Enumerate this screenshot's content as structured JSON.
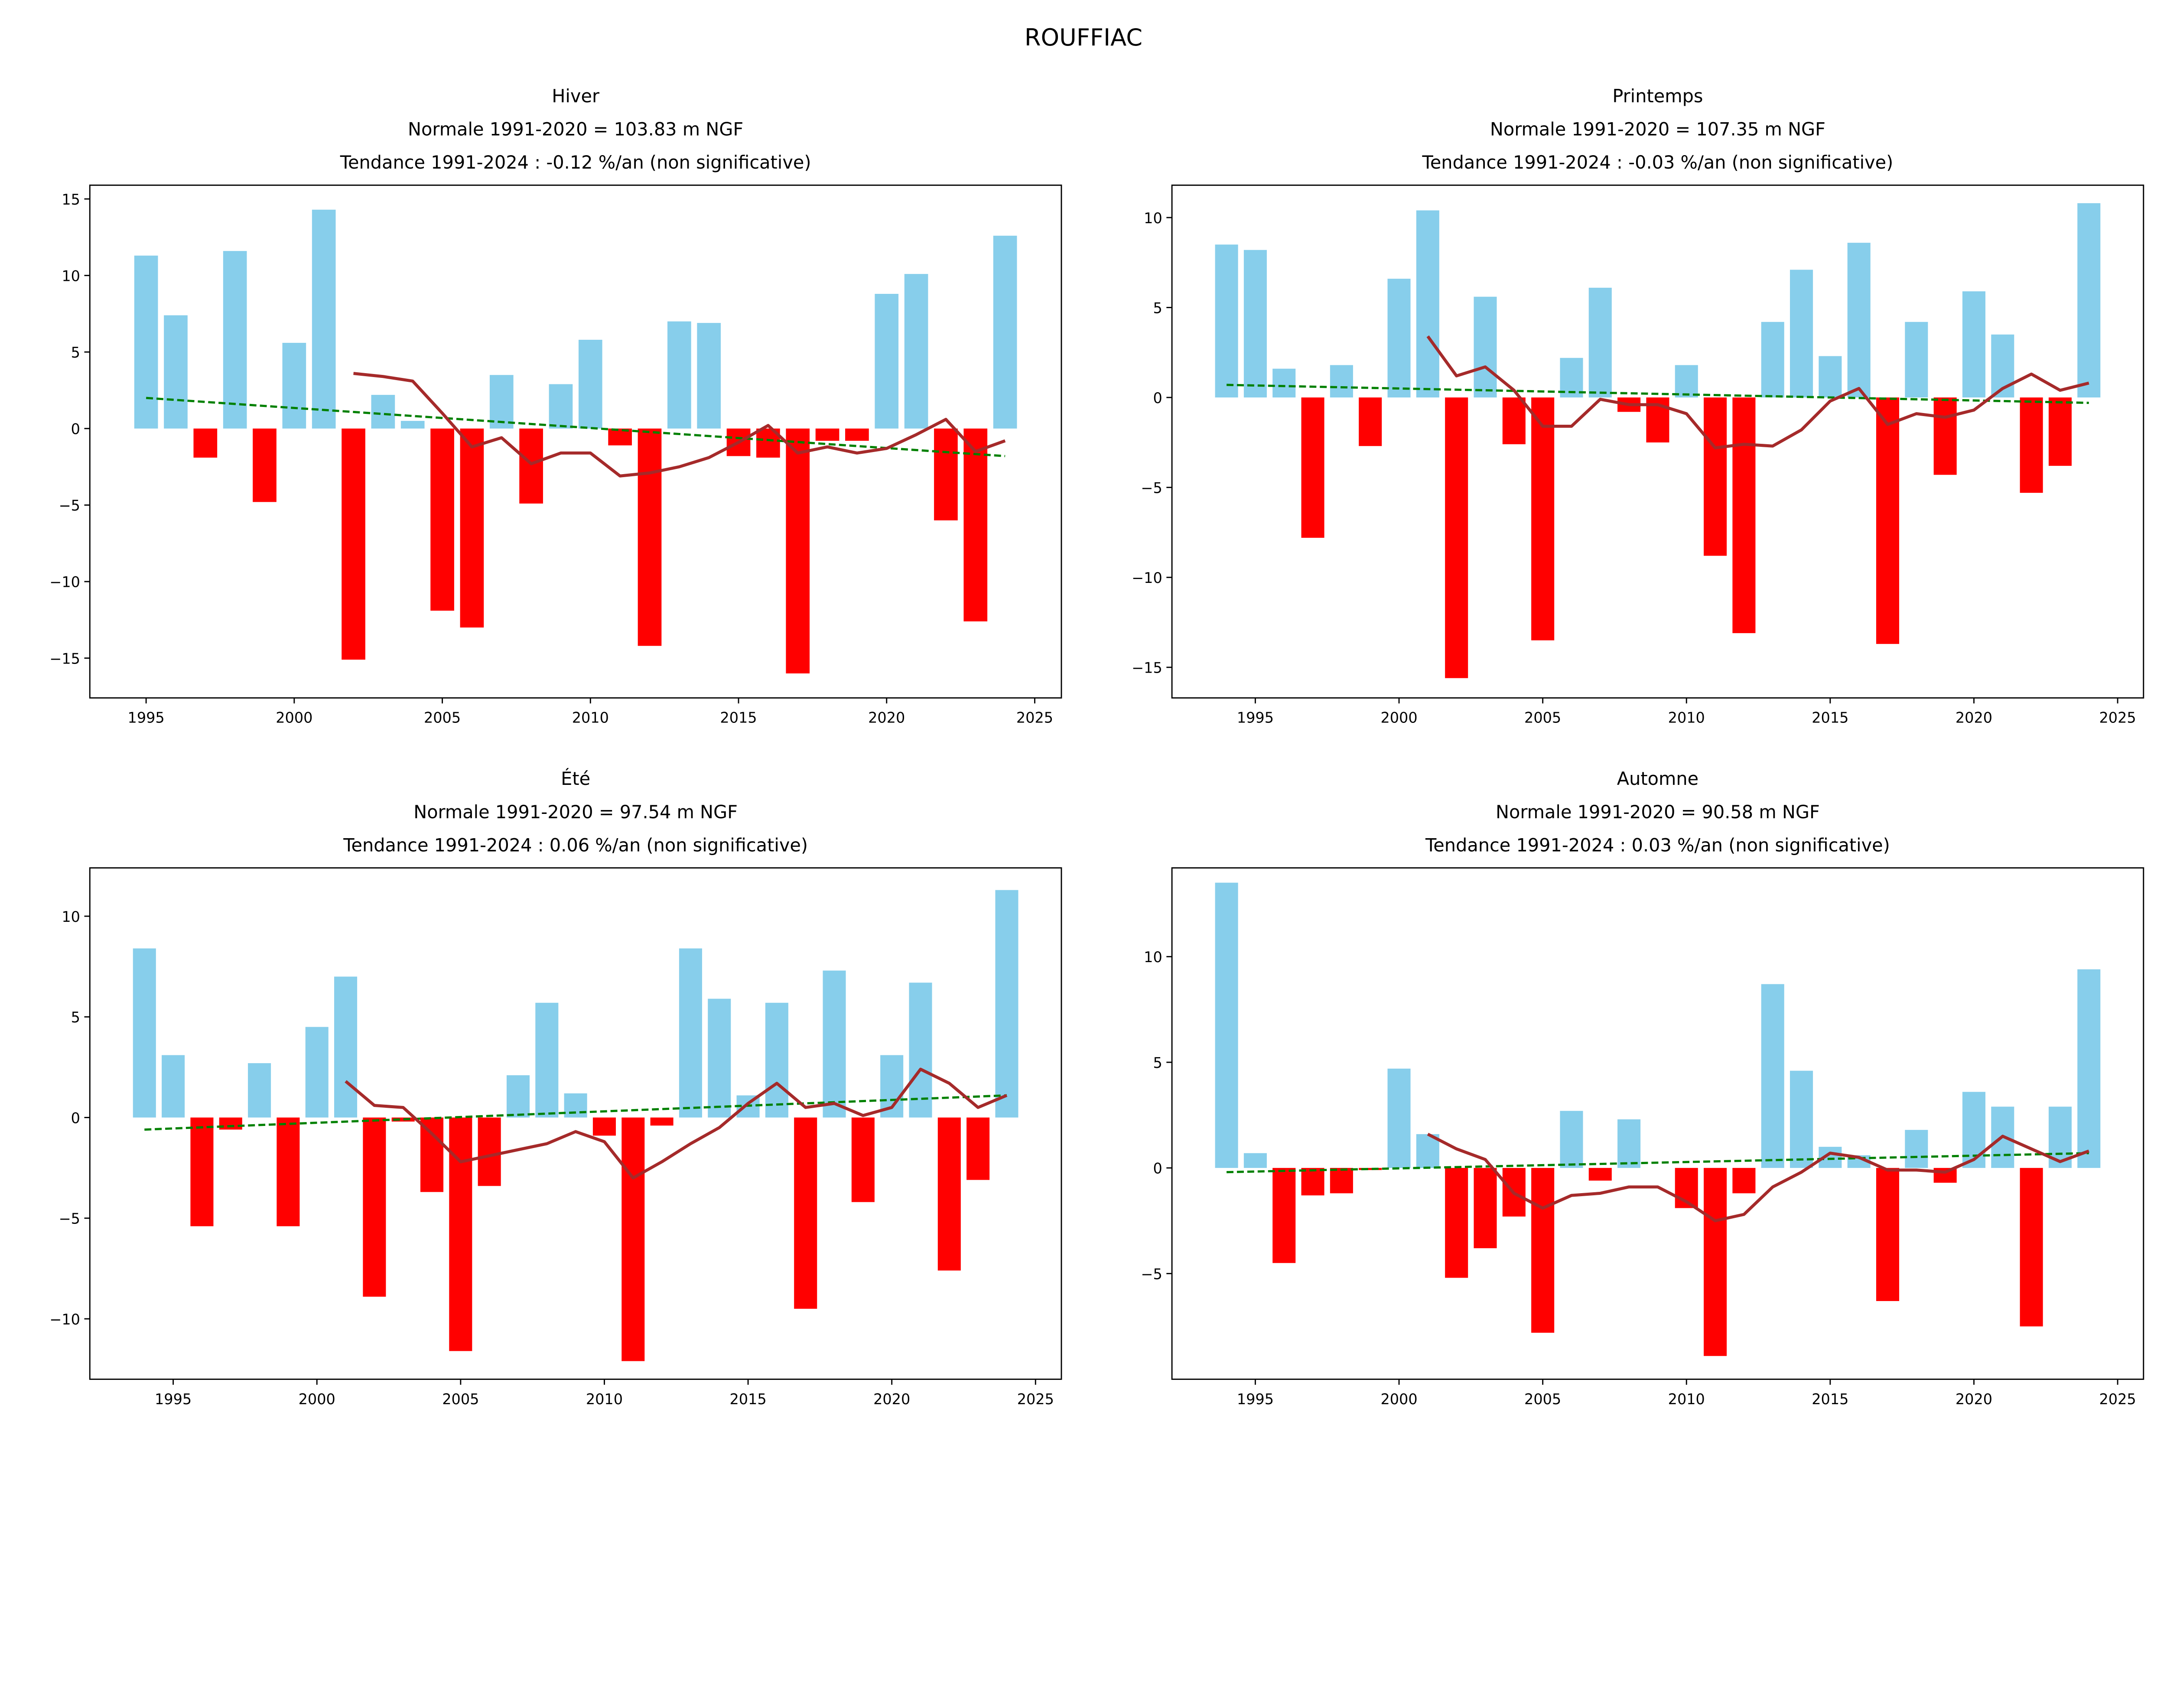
{
  "suptitle": "ROUFFIAC",
  "colors": {
    "positive": "#87ceeb",
    "negative": "#ff0000",
    "rolling": "#a52a2a",
    "trend": "#008000"
  },
  "chart_data": [
    {
      "type": "bar",
      "title_lines": [
        "Hiver",
        "Normale 1991-2020 = 103.83 m NGF",
        "Tendance 1991-2024 : -0.12 %/an (non significative)"
      ],
      "xlim": [
        1993.1,
        2025.9
      ],
      "ylim": [
        -17.6,
        15.9
      ],
      "xticks": [
        1995,
        2000,
        2005,
        2010,
        2015,
        2020,
        2025
      ],
      "yticks": [
        -15,
        -10,
        -5,
        0,
        5,
        10,
        15
      ],
      "years": [
        1995,
        1996,
        1997,
        1998,
        1999,
        2000,
        2001,
        2002,
        2003,
        2004,
        2005,
        2006,
        2007,
        2008,
        2009,
        2010,
        2011,
        2012,
        2013,
        2014,
        2015,
        2016,
        2017,
        2018,
        2019,
        2020,
        2021,
        2022,
        2023,
        2024
      ],
      "values": [
        11.3,
        7.4,
        -1.9,
        11.6,
        -4.8,
        5.6,
        14.3,
        -15.1,
        2.2,
        0.5,
        -11.9,
        -13.0,
        3.5,
        -4.9,
        2.9,
        5.8,
        -1.1,
        -14.2,
        7.0,
        6.9,
        -1.8,
        -1.9,
        -16.0,
        -0.8,
        -0.8,
        8.8,
        10.1,
        -6.0,
        -12.6,
        12.6
      ],
      "rolling_years": [
        2002,
        2003,
        2004,
        2005,
        2006,
        2007,
        2008,
        2009,
        2010,
        2011,
        2012,
        2013,
        2014,
        2015,
        2016,
        2017,
        2018,
        2019,
        2020,
        2021,
        2022,
        2023,
        2024
      ],
      "rolling": [
        3.6,
        3.4,
        3.1,
        1.0,
        -1.2,
        -0.6,
        -2.3,
        -1.6,
        -1.6,
        -3.1,
        -2.9,
        -2.5,
        -1.9,
        -0.9,
        0.2,
        -1.6,
        -1.2,
        -1.6,
        -1.3,
        -0.4,
        0.6,
        -1.5,
        -0.8
      ],
      "trend": {
        "x": [
          1995,
          2024
        ],
        "y": [
          2.0,
          -1.8
        ]
      }
    },
    {
      "type": "bar",
      "title_lines": [
        "Printemps",
        "Normale 1991-2020 = 107.35 m NGF",
        "Tendance 1991-2024 : -0.03 %/an (non significative)"
      ],
      "xlim": [
        1992.1,
        2025.9
      ],
      "ylim": [
        -16.7,
        11.8
      ],
      "xticks": [
        1995,
        2000,
        2005,
        2010,
        2015,
        2020,
        2025
      ],
      "yticks": [
        -15,
        -10,
        -5,
        0,
        5,
        10
      ],
      "years": [
        1994,
        1995,
        1996,
        1997,
        1998,
        1999,
        2000,
        2001,
        2002,
        2003,
        2004,
        2005,
        2006,
        2007,
        2008,
        2009,
        2010,
        2011,
        2012,
        2013,
        2014,
        2015,
        2016,
        2017,
        2018,
        2019,
        2020,
        2021,
        2022,
        2023,
        2024
      ],
      "values": [
        8.5,
        8.2,
        1.6,
        -7.8,
        1.8,
        -2.7,
        6.6,
        10.4,
        -15.6,
        5.6,
        -2.6,
        -13.5,
        2.2,
        6.1,
        -0.8,
        -2.5,
        1.8,
        -8.8,
        -13.1,
        4.2,
        7.1,
        2.3,
        8.6,
        -13.7,
        4.2,
        -4.3,
        5.9,
        3.5,
        -5.3,
        -3.8,
        10.8
      ],
      "rolling_years": [
        2001,
        2002,
        2003,
        2004,
        2005,
        2006,
        2007,
        2008,
        2009,
        2010,
        2011,
        2012,
        2013,
        2014,
        2015,
        2016,
        2017,
        2018,
        2019,
        2020,
        2021,
        2022,
        2023,
        2024
      ],
      "rolling": [
        3.4,
        1.2,
        1.7,
        0.4,
        -1.6,
        -1.6,
        -0.1,
        -0.4,
        -0.4,
        -0.9,
        -2.8,
        -2.6,
        -2.7,
        -1.8,
        -0.2,
        0.5,
        -1.5,
        -0.9,
        -1.1,
        -0.7,
        0.5,
        1.3,
        0.4,
        0.8
      ],
      "trend": {
        "x": [
          1994,
          2024
        ],
        "y": [
          0.7,
          -0.3
        ]
      }
    },
    {
      "type": "bar",
      "title_lines": [
        "Été",
        "Normale 1991-2020 = 97.54 m NGF",
        "Tendance 1991-2024 : 0.06 %/an (non significative)"
      ],
      "xlim": [
        1992.1,
        2025.9
      ],
      "ylim": [
        -13.0,
        12.4
      ],
      "xticks": [
        1995,
        2000,
        2005,
        2010,
        2015,
        2020,
        2025
      ],
      "yticks": [
        -10,
        -5,
        0,
        5,
        10
      ],
      "years": [
        1994,
        1995,
        1996,
        1997,
        1998,
        1999,
        2000,
        2001,
        2002,
        2003,
        2004,
        2005,
        2006,
        2007,
        2008,
        2009,
        2010,
        2011,
        2012,
        2013,
        2014,
        2015,
        2016,
        2017,
        2018,
        2019,
        2020,
        2021,
        2022,
        2023,
        2024
      ],
      "values": [
        8.4,
        3.1,
        -5.4,
        -0.6,
        2.7,
        -5.4,
        4.5,
        7.0,
        -8.9,
        -0.2,
        -3.7,
        -11.6,
        -3.4,
        2.1,
        5.7,
        1.2,
        -0.9,
        -12.1,
        -0.4,
        8.4,
        5.9,
        1.1,
        5.7,
        -9.5,
        7.3,
        -4.2,
        3.1,
        6.7,
        -7.6,
        -3.1,
        11.3
      ],
      "rolling_years": [
        2001,
        2002,
        2003,
        2004,
        2005,
        2006,
        2007,
        2008,
        2009,
        2010,
        2011,
        2012,
        2013,
        2014,
        2015,
        2016,
        2017,
        2018,
        2019,
        2020,
        2021,
        2022,
        2023,
        2024
      ],
      "rolling": [
        1.8,
        0.6,
        0.5,
        -0.8,
        -2.2,
        -1.9,
        -1.6,
        -1.3,
        -0.7,
        -1.2,
        -3.0,
        -2.2,
        -1.3,
        -0.5,
        0.7,
        1.7,
        0.5,
        0.7,
        0.1,
        0.5,
        2.4,
        1.7,
        0.5,
        1.1
      ],
      "trend": {
        "x": [
          1994,
          2024
        ],
        "y": [
          -0.6,
          1.1
        ]
      }
    },
    {
      "type": "bar",
      "title_lines": [
        "Automne",
        "Normale 1991-2020 = 90.58 m NGF",
        "Tendance 1991-2024 : 0.03 %/an (non significative)"
      ],
      "xlim": [
        1992.1,
        2025.9
      ],
      "ylim": [
        -10.0,
        14.2
      ],
      "xticks": [
        1995,
        2000,
        2005,
        2010,
        2015,
        2020,
        2025
      ],
      "yticks": [
        -5,
        0,
        5,
        10
      ],
      "years": [
        1994,
        1995,
        1996,
        1997,
        1998,
        1999,
        2000,
        2001,
        2002,
        2003,
        2004,
        2005,
        2006,
        2007,
        2008,
        2009,
        2010,
        2011,
        2012,
        2013,
        2014,
        2015,
        2016,
        2017,
        2018,
        2019,
        2020,
        2021,
        2022,
        2023,
        2024
      ],
      "values": [
        13.5,
        0.7,
        -4.5,
        -1.3,
        -1.2,
        -0.1,
        4.7,
        1.6,
        -5.2,
        -3.8,
        -2.3,
        -7.8,
        2.7,
        -0.6,
        2.3,
        0.0,
        -1.9,
        -8.9,
        -1.2,
        8.7,
        4.6,
        1.0,
        0.6,
        -6.3,
        1.8,
        -0.7,
        3.6,
        2.9,
        -7.5,
        2.9,
        9.4
      ],
      "rolling_years": [
        2001,
        2002,
        2003,
        2004,
        2005,
        2006,
        2007,
        2008,
        2009,
        2010,
        2011,
        2012,
        2013,
        2014,
        2015,
        2016,
        2017,
        2018,
        2019,
        2020,
        2021,
        2022,
        2023,
        2024
      ],
      "rolling": [
        1.6,
        0.9,
        0.4,
        -1.2,
        -1.9,
        -1.3,
        -1.2,
        -0.9,
        -0.9,
        -1.6,
        -2.5,
        -2.2,
        -0.9,
        -0.2,
        0.7,
        0.5,
        -0.1,
        -0.1,
        -0.2,
        0.4,
        1.5,
        0.9,
        0.3,
        0.8
      ],
      "trend": {
        "x": [
          1994,
          2024
        ],
        "y": [
          -0.2,
          0.7
        ]
      }
    }
  ]
}
